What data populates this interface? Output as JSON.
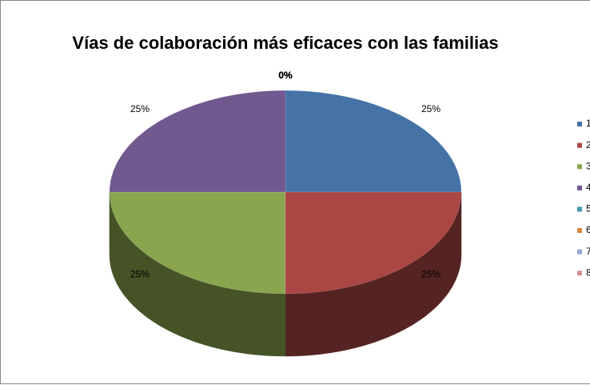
{
  "chart_data": {
    "type": "pie",
    "title": "Vías de colaboración más eficaces con las familias",
    "categories": [
      "1",
      "2",
      "3",
      "4",
      "5",
      "6",
      "7",
      "8"
    ],
    "values": [
      25,
      25,
      25,
      25,
      0,
      0,
      0,
      0
    ],
    "value_labels": [
      "25%",
      "25%",
      "25%",
      "25%",
      "0%",
      "0%",
      "0%",
      "0%"
    ],
    "colors": [
      "#4572a7",
      "#aa4643",
      "#89a54e",
      "#71588f",
      "#4198af",
      "#db843d",
      "#93a9cf",
      "#d19392"
    ],
    "legend": "right"
  }
}
